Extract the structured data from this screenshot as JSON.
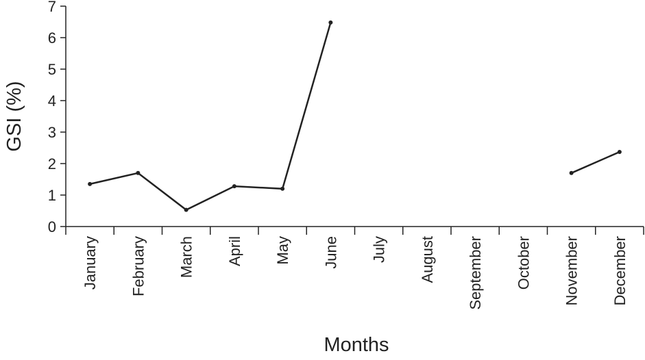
{
  "chart_data": {
    "type": "line",
    "x_label": "Months",
    "y_label": "GSI (%)",
    "categories": [
      "January",
      "February",
      "March",
      "April",
      "May",
      "June",
      "July",
      "August",
      "September",
      "October",
      "November",
      "December"
    ],
    "series": [
      {
        "name": "GSI",
        "color": "#222222",
        "values": [
          1.35,
          1.7,
          0.53,
          1.28,
          1.2,
          6.48,
          null,
          null,
          null,
          null,
          1.7,
          2.37
        ]
      }
    ],
    "ylim": [
      0,
      7
    ],
    "yticks": [
      0,
      1,
      2,
      3,
      4,
      5,
      6,
      7
    ],
    "grid": false
  }
}
